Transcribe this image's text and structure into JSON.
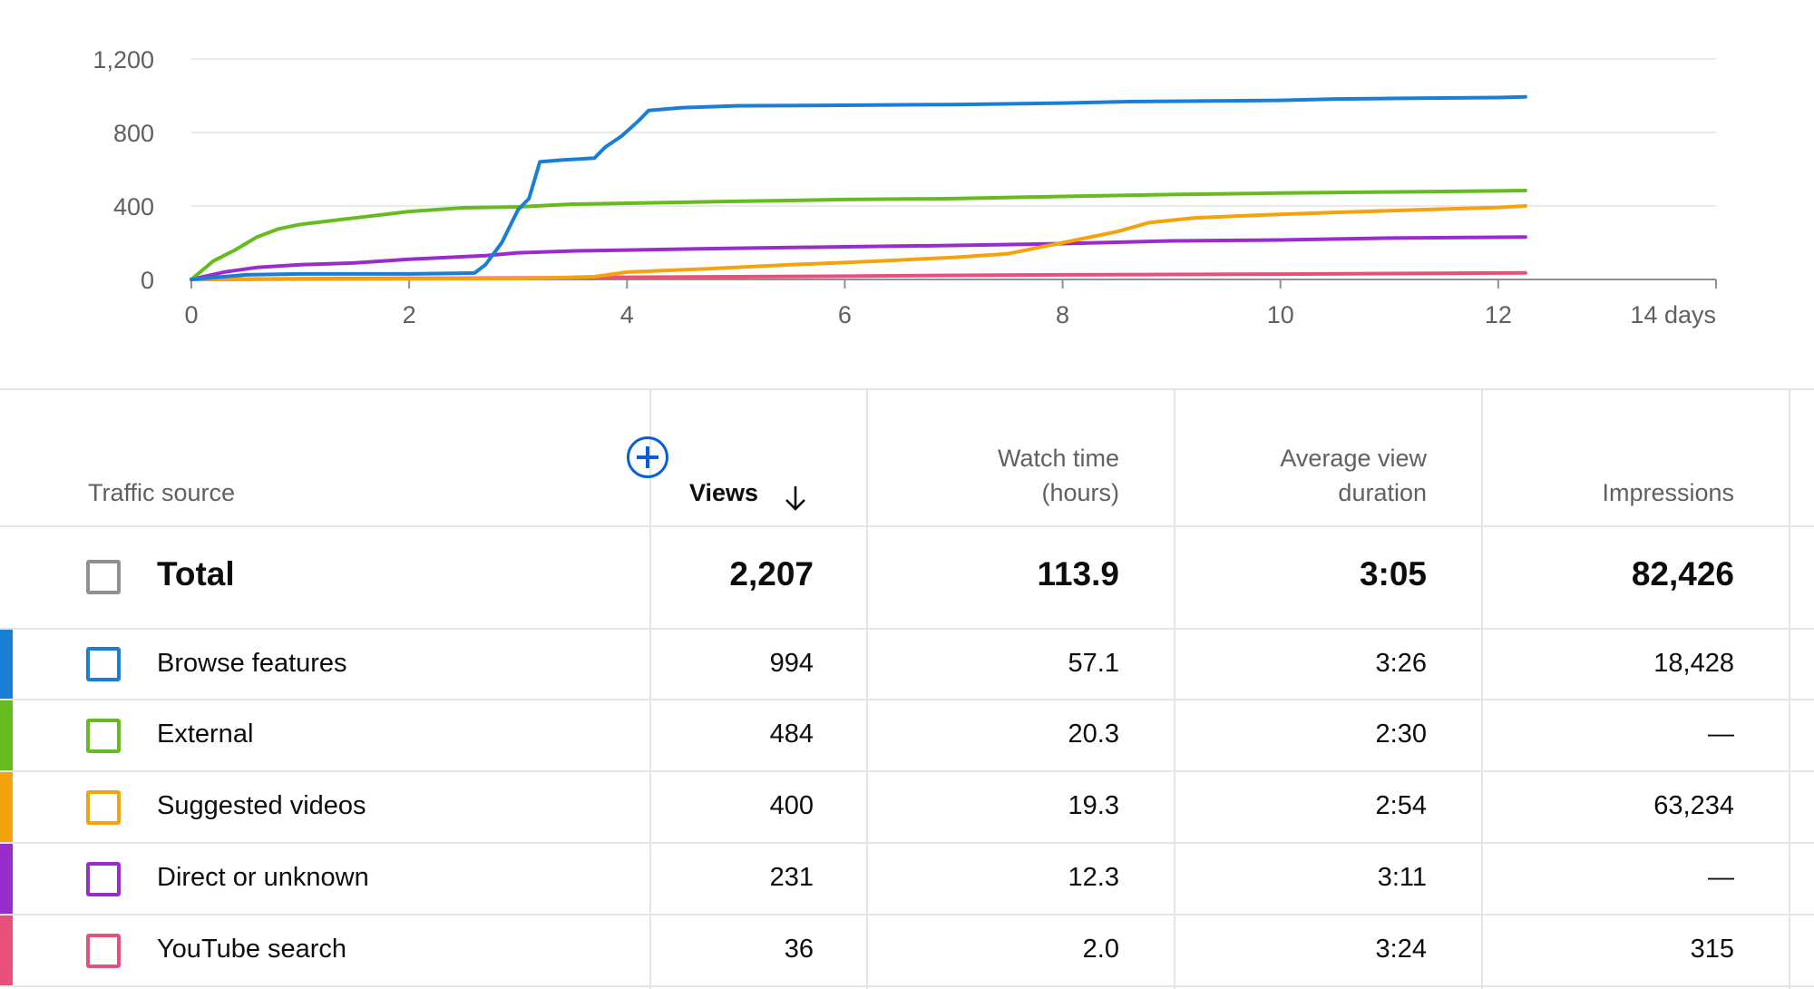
{
  "chart_data": {
    "type": "line",
    "title": "",
    "xlabel": "",
    "ylabel": "",
    "xlim": [
      0,
      14
    ],
    "ylim": [
      0,
      1200
    ],
    "x_ticks": [
      0,
      2,
      4,
      6,
      8,
      10,
      12,
      14
    ],
    "x_tick_labels": [
      "0",
      "2",
      "4",
      "6",
      "8",
      "10",
      "12",
      "14 days"
    ],
    "y_ticks": [
      0,
      400,
      800,
      1200
    ],
    "y_tick_labels": [
      "0",
      "400",
      "800",
      "1,200"
    ],
    "grid": true,
    "series": [
      {
        "name": "Browse features",
        "color": "#1a7fd4",
        "points": [
          [
            0,
            0
          ],
          [
            0.5,
            25
          ],
          [
            1,
            30
          ],
          [
            2,
            30
          ],
          [
            2.6,
            35
          ],
          [
            2.7,
            80
          ],
          [
            2.85,
            200
          ],
          [
            3,
            380
          ],
          [
            3.1,
            440
          ],
          [
            3.2,
            640
          ],
          [
            3.4,
            650
          ],
          [
            3.7,
            660
          ],
          [
            3.8,
            720
          ],
          [
            3.95,
            780
          ],
          [
            4.1,
            860
          ],
          [
            4.2,
            920
          ],
          [
            4.5,
            935
          ],
          [
            5,
            945
          ],
          [
            6,
            948
          ],
          [
            7,
            952
          ],
          [
            8,
            960
          ],
          [
            8.6,
            968
          ],
          [
            9,
            970
          ],
          [
            10,
            975
          ],
          [
            10.5,
            982
          ],
          [
            11,
            985
          ],
          [
            12,
            990
          ],
          [
            12.25,
            994
          ]
        ]
      },
      {
        "name": "External",
        "color": "#66bb1e",
        "points": [
          [
            0,
            0
          ],
          [
            0.1,
            50
          ],
          [
            0.2,
            100
          ],
          [
            0.4,
            160
          ],
          [
            0.6,
            230
          ],
          [
            0.8,
            275
          ],
          [
            1,
            300
          ],
          [
            1.5,
            335
          ],
          [
            2,
            370
          ],
          [
            2.5,
            390
          ],
          [
            3,
            395
          ],
          [
            3.5,
            410
          ],
          [
            4,
            415
          ],
          [
            5,
            425
          ],
          [
            6,
            435
          ],
          [
            7,
            440
          ],
          [
            8,
            452
          ],
          [
            9,
            462
          ],
          [
            10,
            470
          ],
          [
            11,
            476
          ],
          [
            12,
            482
          ],
          [
            12.25,
            484
          ]
        ]
      },
      {
        "name": "Suggested videos",
        "color": "#f4a30c",
        "points": [
          [
            0,
            0
          ],
          [
            3,
            5
          ],
          [
            3.7,
            15
          ],
          [
            4,
            40
          ],
          [
            4.8,
            60
          ],
          [
            5.5,
            80
          ],
          [
            6.3,
            100
          ],
          [
            7,
            120
          ],
          [
            7.5,
            140
          ],
          [
            8,
            200
          ],
          [
            8.5,
            260
          ],
          [
            8.8,
            310
          ],
          [
            9.2,
            335
          ],
          [
            9.8,
            350
          ],
          [
            10.5,
            365
          ],
          [
            11.3,
            380
          ],
          [
            12,
            392
          ],
          [
            12.25,
            400
          ]
        ]
      },
      {
        "name": "Direct or unknown",
        "color": "#9a2ccc",
        "points": [
          [
            0,
            0
          ],
          [
            0.3,
            40
          ],
          [
            0.6,
            65
          ],
          [
            1,
            80
          ],
          [
            1.5,
            90
          ],
          [
            2,
            110
          ],
          [
            2.7,
            130
          ],
          [
            3,
            145
          ],
          [
            3.5,
            155
          ],
          [
            4,
            160
          ],
          [
            5,
            170
          ],
          [
            6,
            178
          ],
          [
            7,
            185
          ],
          [
            8,
            195
          ],
          [
            9,
            210
          ],
          [
            10,
            215
          ],
          [
            11,
            225
          ],
          [
            12.25,
            231
          ]
        ]
      },
      {
        "name": "YouTube search",
        "color": "#e6507a",
        "points": [
          [
            0,
            0
          ],
          [
            1,
            4
          ],
          [
            2,
            6
          ],
          [
            3,
            8
          ],
          [
            4,
            12
          ],
          [
            5,
            15
          ],
          [
            6,
            18
          ],
          [
            7,
            22
          ],
          [
            8,
            25
          ],
          [
            9,
            27
          ],
          [
            10,
            29
          ],
          [
            11,
            32
          ],
          [
            12,
            35
          ],
          [
            12.25,
            36
          ]
        ]
      }
    ]
  },
  "table": {
    "headers": {
      "traffic_source": "Traffic source",
      "views": "Views",
      "watch_time_line1": "Watch time",
      "watch_time_line2": "(hours)",
      "avg_view_duration_line1": "Average view",
      "avg_view_duration_line2": "duration",
      "impressions": "Impressions"
    },
    "total": {
      "label": "Total",
      "views": "2,207",
      "watch_time": "113.9",
      "avg_duration": "3:05",
      "impressions": "82,426"
    },
    "rows": [
      {
        "label": "Browse features",
        "views": "994",
        "watch_time": "57.1",
        "avg_duration": "3:26",
        "impressions": "18,428",
        "color": "#1a7fd4"
      },
      {
        "label": "External",
        "views": "484",
        "watch_time": "20.3",
        "avg_duration": "2:30",
        "impressions": "—",
        "color": "#66bb1e"
      },
      {
        "label": "Suggested videos",
        "views": "400",
        "watch_time": "19.3",
        "avg_duration": "2:54",
        "impressions": "63,234",
        "color": "#f4a30c"
      },
      {
        "label": "Direct or unknown",
        "views": "231",
        "watch_time": "12.3",
        "avg_duration": "3:11",
        "impressions": "—",
        "color": "#9a2ccc"
      },
      {
        "label": "YouTube search",
        "views": "36",
        "watch_time": "2.0",
        "avg_duration": "3:24",
        "impressions": "315",
        "color": "#e6507a"
      }
    ],
    "add_metric_icon": "plus-circle-icon",
    "sort_icon": "arrow-down-icon"
  }
}
